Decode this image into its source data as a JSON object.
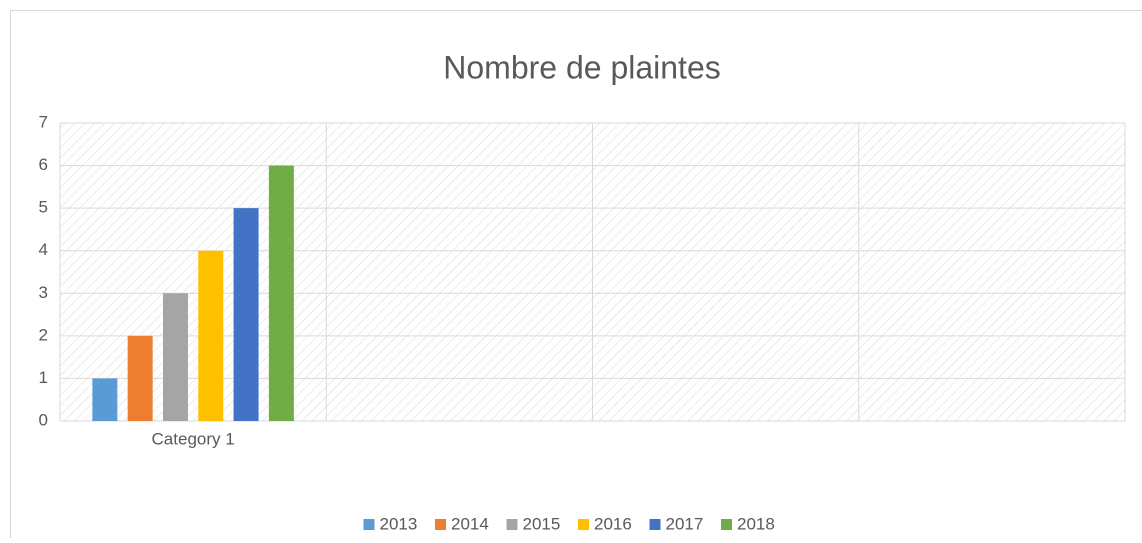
{
  "chart_data": {
    "type": "bar",
    "title": "Nombre de plaintes",
    "categories": [
      "Category 1",
      null,
      null,
      null
    ],
    "series": [
      {
        "name": "2013",
        "color": "#5b9bd5",
        "values": [
          1,
          null,
          null,
          null
        ]
      },
      {
        "name": "2014",
        "color": "#ed7d31",
        "values": [
          2,
          null,
          null,
          null
        ]
      },
      {
        "name": "2015",
        "color": "#a5a5a5",
        "values": [
          3,
          null,
          null,
          null
        ]
      },
      {
        "name": "2016",
        "color": "#ffc000",
        "values": [
          4,
          null,
          null,
          null
        ]
      },
      {
        "name": "2017",
        "color": "#4472c4",
        "values": [
          5,
          null,
          null,
          null
        ]
      },
      {
        "name": "2018",
        "color": "#70ad47",
        "values": [
          6,
          null,
          null,
          null
        ]
      }
    ],
    "ylim": [
      0,
      7
    ],
    "yticks": [
      0,
      1,
      2,
      3,
      4,
      5,
      6,
      7
    ],
    "grid": true,
    "legend": "bottom"
  }
}
